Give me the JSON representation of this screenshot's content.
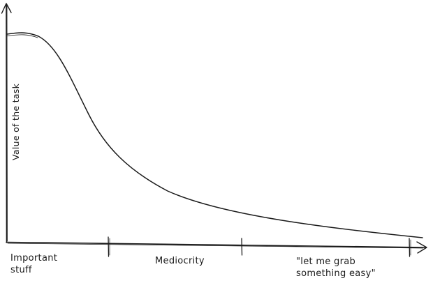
{
  "diagram": {
    "y_axis_label": "Value of the task",
    "segments": [
      {
        "lines": [
          "Important",
          "stuff"
        ]
      },
      {
        "lines": [
          "Mediocrity"
        ]
      },
      {
        "lines": [
          "\"let me grab",
          "something easy\""
        ]
      }
    ]
  }
}
